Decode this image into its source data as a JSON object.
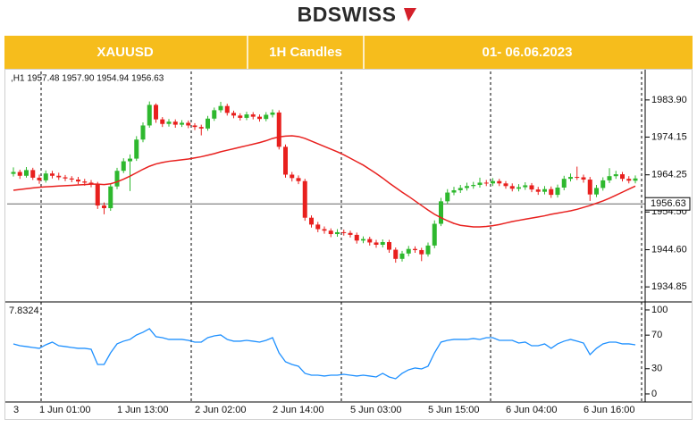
{
  "header": {
    "logo": "BDSWISS",
    "symbol": "XAUUSD",
    "timeframe": "1H Candles",
    "dates": "01- 06.06.2023"
  },
  "chart_data": [
    {
      "type": "candlestick",
      "info": ",H1  1957.48 1957.90 1954.94 1956.63",
      "categories": [
        "3",
        null,
        null,
        null,
        "1 Jun 01:00",
        null,
        null,
        null,
        null,
        null,
        null,
        null,
        null,
        null,
        null,
        null,
        "1 Jun 13:00",
        null,
        null,
        null,
        null,
        null,
        null,
        null,
        null,
        null,
        null,
        null,
        "2 Jun 02:00",
        null,
        null,
        null,
        null,
        null,
        null,
        null,
        null,
        null,
        null,
        null,
        "2 Jun 14:00",
        null,
        null,
        null,
        null,
        null,
        null,
        null,
        null,
        null,
        null,
        null,
        "5 Jun 03:00",
        null,
        null,
        null,
        null,
        null,
        null,
        null,
        null,
        null,
        null,
        null,
        "5 Jun 15:00",
        null,
        null,
        null,
        null,
        null,
        null,
        null,
        null,
        null,
        null,
        null,
        "6 Jun 04:00",
        null,
        null,
        null,
        null,
        null,
        null,
        null,
        null,
        null,
        null,
        null,
        "6 Jun 16:00",
        null,
        null,
        null,
        null,
        null,
        null,
        null,
        null
      ],
      "open": [
        1964.5,
        1965,
        1964,
        1965.5,
        1963.5,
        1962.8,
        1964.6,
        1964,
        1963.6,
        1963.3,
        1963,
        1962.5,
        1962.2,
        1961.8,
        1956.2,
        1955.5,
        1961.2,
        1965.3,
        1967.8,
        1968.5,
        1973.5,
        1977.2,
        1982.6,
        1978.8,
        1977.6,
        1978.2,
        1977.4,
        1977.9,
        1977.2,
        1976.8,
        1976.4,
        1979,
        1981.2,
        1982.3,
        1980.5,
        1979.8,
        1979.2,
        1980.1,
        1979.5,
        1978.9,
        1980,
        1980.6,
        1971.6,
        1964.3,
        1963.4,
        1962.6,
        1953,
        1951.2,
        1950,
        1949.6,
        1948.7,
        1949.2,
        1949,
        1948.5,
        1947,
        1947.4,
        1946.5,
        1945.9,
        1946.6,
        1944.6,
        1942.2,
        1943.6,
        1944.8,
        1944.5,
        1943.4,
        1945.7,
        1951.4,
        1957.3,
        1959.6,
        1960.2,
        1960.8,
        1961.3,
        1961.6,
        1962.2,
        1962,
        1962.6,
        1962,
        1961.3,
        1960.6,
        1961,
        1961.5,
        1960.4,
        1959.8,
        1960.5,
        1959,
        1960.9,
        1963.2,
        1963.7,
        1963.6,
        1963,
        1959.1,
        1960.8,
        1962.8,
        1963.9,
        1964.4,
        1963.2,
        1962.7
      ],
      "high": [
        1966.2,
        1965.6,
        1966.3,
        1966.1,
        1964.3,
        1965.4,
        1965.3,
        1964.8,
        1964.2,
        1963.9,
        1963.7,
        1963.2,
        1962.9,
        1962.4,
        1957,
        1962,
        1966.1,
        1968.6,
        1969.6,
        1974.4,
        1978,
        1983.5,
        1983,
        1979.4,
        1978.9,
        1978.8,
        1978.6,
        1978.5,
        1977.8,
        1977.4,
        1979.7,
        1981.9,
        1983.4,
        1982.9,
        1981.1,
        1980.4,
        1980.8,
        1980.7,
        1980.1,
        1980.7,
        1981.4,
        1981.2,
        1972.2,
        1965,
        1964.1,
        1963.2,
        1953.6,
        1951.9,
        1950.7,
        1950.2,
        1950,
        1949.9,
        1949.6,
        1949.1,
        1948.1,
        1948,
        1947.2,
        1947.3,
        1947.2,
        1945.2,
        1944.3,
        1945.6,
        1945.5,
        1945.1,
        1946.5,
        1952.3,
        1958.2,
        1960.5,
        1961.1,
        1961.6,
        1962.2,
        1962.4,
        1963.5,
        1962.9,
        1963.4,
        1963.2,
        1962.6,
        1962,
        1961.8,
        1962.3,
        1962.1,
        1961.1,
        1961.3,
        1961.2,
        1961.7,
        1964,
        1964.6,
        1966.4,
        1964.3,
        1963.7,
        1961.6,
        1963.6,
        1966,
        1965.3,
        1965,
        1963.9,
        1964.1
      ],
      "low": [
        1963.8,
        1963.2,
        1963.5,
        1962.9,
        1961.9,
        1962.2,
        1963.3,
        1962.9,
        1962.6,
        1962.3,
        1961.8,
        1961.4,
        1961,
        1955.3,
        1953.9,
        1954.8,
        1960.5,
        1964.7,
        1960,
        1967.9,
        1972.8,
        1976.6,
        1977.9,
        1976.8,
        1976.9,
        1976.6,
        1976.8,
        1976.5,
        1976,
        1974.6,
        1975.8,
        1978.4,
        1980.6,
        1979.8,
        1979.1,
        1978.5,
        1978.6,
        1978.8,
        1978.2,
        1978.3,
        1979.3,
        1970.9,
        1963.5,
        1962.5,
        1961.8,
        1952.2,
        1950.4,
        1949.2,
        1948.8,
        1947.9,
        1948,
        1948.3,
        1947.8,
        1946.2,
        1946.3,
        1945.7,
        1945.1,
        1945.2,
        1943.8,
        1941.2,
        1941.5,
        1942.9,
        1943.8,
        1941.6,
        1942.8,
        1945,
        1950.8,
        1956.6,
        1958.9,
        1959.5,
        1960.1,
        1960.6,
        1960.9,
        1961.3,
        1961.3,
        1961.3,
        1960.6,
        1959.9,
        1959.9,
        1960.3,
        1959.7,
        1959,
        1959.1,
        1958.2,
        1958.3,
        1960.2,
        1962.5,
        1962.9,
        1962.2,
        1957.4,
        1958.4,
        1960.1,
        1962.1,
        1963.2,
        1962.5,
        1962,
        1962
      ],
      "close": [
        1965,
        1964,
        1965.5,
        1963.5,
        1962.8,
        1964.6,
        1964,
        1963.6,
        1963.3,
        1963,
        1962.5,
        1962.2,
        1961.8,
        1956.2,
        1955.5,
        1961.2,
        1965.3,
        1967.8,
        1968.5,
        1973.5,
        1977.2,
        1982.6,
        1978.8,
        1977.6,
        1978.2,
        1977.4,
        1977.9,
        1977.2,
        1976.8,
        1976.4,
        1979,
        1981.2,
        1982.3,
        1980.5,
        1979.8,
        1979.2,
        1980.1,
        1979.5,
        1978.9,
        1980,
        1980.6,
        1971.6,
        1964.3,
        1963.4,
        1962.6,
        1953,
        1951.2,
        1950,
        1949.6,
        1948.7,
        1949.2,
        1949,
        1948.5,
        1947,
        1947.4,
        1946.5,
        1945.9,
        1946.6,
        1944.6,
        1942.2,
        1943.6,
        1944.8,
        1944.5,
        1943.4,
        1945.7,
        1951.4,
        1957.3,
        1959.6,
        1960.2,
        1960.8,
        1961.3,
        1961.6,
        1962.2,
        1962,
        1962.6,
        1962,
        1961.3,
        1960.6,
        1961,
        1961.5,
        1960.4,
        1959.8,
        1960.5,
        1959,
        1960.9,
        1963.2,
        1963.7,
        1963.6,
        1963,
        1959.1,
        1960.8,
        1962.8,
        1963.9,
        1964.4,
        1963.2,
        1962.7,
        1963.3
      ],
      "up_color": "#2eb82e",
      "down_color": "#e8201e",
      "overlay": {
        "color": "#e8201e",
        "values": [
          1960.2,
          1960.4,
          1960.6,
          1960.8,
          1961,
          1961.1,
          1961.2,
          1961.3,
          1961.4,
          1961.5,
          1961.6,
          1961.7,
          1961.8,
          1961.8,
          1961.7,
          1961.9,
          1962.4,
          1963.1,
          1963.9,
          1964.8,
          1965.7,
          1966.5,
          1967.1,
          1967.5,
          1967.8,
          1968,
          1968.2,
          1968.4,
          1968.7,
          1969,
          1969.4,
          1969.8,
          1970.3,
          1970.7,
          1971.1,
          1971.5,
          1971.9,
          1972.3,
          1972.7,
          1973.2,
          1973.8,
          1974.2,
          1974.4,
          1974.5,
          1974.3,
          1973.8,
          1973.1,
          1972.4,
          1971.7,
          1971,
          1970.3,
          1969.5,
          1968.6,
          1967.7,
          1966.8,
          1965.7,
          1964.6,
          1963.4,
          1962.1,
          1960.9,
          1959.7,
          1958.6,
          1957.4,
          1956.2,
          1955,
          1953.9,
          1953,
          1952.2,
          1951.5,
          1951,
          1950.8,
          1950.6,
          1950.6,
          1950.7,
          1950.9,
          1951.2,
          1951.6,
          1952,
          1952.3,
          1952.6,
          1952.9,
          1953.2,
          1953.5,
          1953.9,
          1954.2,
          1954.5,
          1954.8,
          1955.2,
          1955.7,
          1956.2,
          1956.8,
          1957.4,
          1958.1,
          1958.9,
          1959.7,
          1960.5,
          1961.3
        ]
      },
      "last_price": 1956.63,
      "ylim": [
        1930.9,
        1990.9
      ],
      "yticks": [
        {
          "value": 1983.9,
          "label": "1983.90"
        },
        1974.15,
        1964.25,
        {
          "value": 1954.5,
          "label": "1954.50"
        },
        {
          "value": 1944.6,
          "label": "1944.60"
        },
        1934.85
      ]
    },
    {
      "type": "line",
      "label": "7.8324",
      "color": "#1e90ff",
      "values": [
        59.6,
        57.4,
        56.4,
        55.3,
        54.3,
        58.5,
        61.7,
        57.4,
        56.4,
        55.3,
        54.3,
        54.3,
        53.2,
        35.1,
        35.1,
        48.9,
        59.6,
        62.8,
        64.9,
        70.2,
        73.4,
        77.7,
        68.1,
        67,
        64.9,
        64.9,
        64.9,
        63.8,
        61.7,
        61.7,
        67,
        69.1,
        70.2,
        64.9,
        62.8,
        62.8,
        63.8,
        62.8,
        61.7,
        63.8,
        67,
        48.9,
        38.3,
        35.1,
        33,
        24.5,
        22.3,
        22.3,
        21.3,
        22.3,
        22.3,
        23.4,
        22.3,
        21.3,
        22.3,
        21.3,
        20.2,
        24.5,
        20.2,
        18.1,
        24.5,
        28.7,
        30.9,
        29.8,
        33,
        48.9,
        61.7,
        63.8,
        64.9,
        64.9,
        64.9,
        66,
        64.9,
        67,
        67,
        63.8,
        63.8,
        63.8,
        60.6,
        61.7,
        57.4,
        57.4,
        59.6,
        54.3,
        59.6,
        62.8,
        64.9,
        62.8,
        60.6,
        46.8,
        54.3,
        59.6,
        61.7,
        61.7,
        59.6,
        59.6,
        58.5
      ],
      "ylim": [
        -9.6,
        107.4
      ],
      "yticks": [
        100,
        70,
        30,
        0
      ]
    }
  ]
}
